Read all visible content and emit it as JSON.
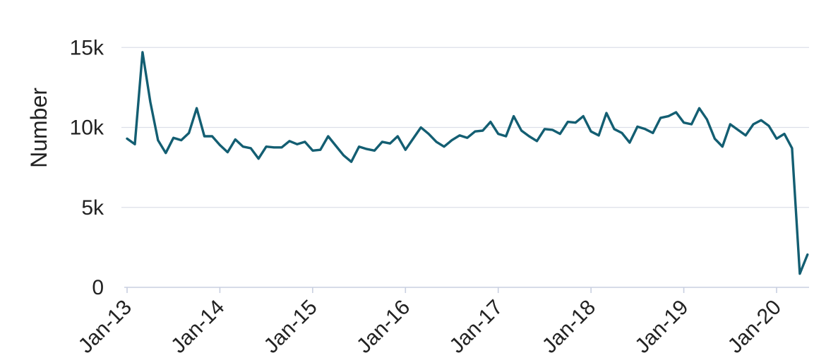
{
  "chart_data": {
    "type": "line",
    "title": "",
    "xlabel": "",
    "ylabel": "Number",
    "xlim": [
      "2013-01",
      "2020-05"
    ],
    "ylim": [
      0,
      16000
    ],
    "y_ticks": [
      0,
      5000,
      10000,
      15000
    ],
    "y_tick_labels": [
      "0",
      "5k",
      "10k",
      "15k"
    ],
    "x_ticks": [
      "2013-01",
      "2014-01",
      "2015-01",
      "2016-01",
      "2017-01",
      "2018-01",
      "2019-01",
      "2020-01"
    ],
    "x_tick_labels": [
      "Jan-13",
      "Jan-14",
      "Jan-15",
      "Jan-16",
      "Jan-17",
      "Jan-18",
      "Jan-19",
      "Jan-20"
    ],
    "grid": "horizontal",
    "legend": "none",
    "series": [
      {
        "color": "#135e72",
        "x": [
          "2013-01",
          "2013-02",
          "2013-03",
          "2013-04",
          "2013-05",
          "2013-06",
          "2013-07",
          "2013-08",
          "2013-09",
          "2013-10",
          "2013-11",
          "2013-12",
          "2014-01",
          "2014-02",
          "2014-03",
          "2014-04",
          "2014-05",
          "2014-06",
          "2014-07",
          "2014-08",
          "2014-09",
          "2014-10",
          "2014-11",
          "2014-12",
          "2015-01",
          "2015-02",
          "2015-03",
          "2015-04",
          "2015-05",
          "2015-06",
          "2015-07",
          "2015-08",
          "2015-09",
          "2015-10",
          "2015-11",
          "2015-12",
          "2016-01",
          "2016-02",
          "2016-03",
          "2016-04",
          "2016-05",
          "2016-06",
          "2016-07",
          "2016-08",
          "2016-09",
          "2016-10",
          "2016-11",
          "2016-12",
          "2017-01",
          "2017-02",
          "2017-03",
          "2017-04",
          "2017-05",
          "2017-06",
          "2017-07",
          "2017-08",
          "2017-09",
          "2017-10",
          "2017-11",
          "2017-12",
          "2018-01",
          "2018-02",
          "2018-03",
          "2018-04",
          "2018-05",
          "2018-06",
          "2018-07",
          "2018-08",
          "2018-09",
          "2018-10",
          "2018-11",
          "2018-12",
          "2019-01",
          "2019-02",
          "2019-03",
          "2019-04",
          "2019-05",
          "2019-06",
          "2019-07",
          "2019-08",
          "2019-09",
          "2019-10",
          "2019-11",
          "2019-12",
          "2020-01",
          "2020-02",
          "2020-03",
          "2020-04",
          "2020-05"
        ],
        "values": [
          9300,
          8950,
          14700,
          11600,
          9200,
          8400,
          9350,
          9200,
          9650,
          11200,
          9450,
          9450,
          8900,
          8450,
          9250,
          8800,
          8700,
          8050,
          8800,
          8750,
          8750,
          9150,
          8950,
          9100,
          8550,
          8600,
          9450,
          8850,
          8250,
          7850,
          8800,
          8650,
          8550,
          9100,
          9000,
          9450,
          8600,
          9300,
          10000,
          9600,
          9100,
          8800,
          9200,
          9500,
          9350,
          9750,
          9800,
          10350,
          9600,
          9450,
          10700,
          9800,
          9450,
          9150,
          9900,
          9850,
          9600,
          10350,
          10300,
          10700,
          9750,
          9500,
          10900,
          9900,
          9650,
          9050,
          10050,
          9900,
          9650,
          10600,
          10700,
          10950,
          10300,
          10200,
          11200,
          10500,
          9300,
          8800,
          10200,
          9850,
          9500,
          10200,
          10450,
          10100,
          9300,
          9600,
          8700,
          850,
          2050
        ]
      }
    ]
  }
}
